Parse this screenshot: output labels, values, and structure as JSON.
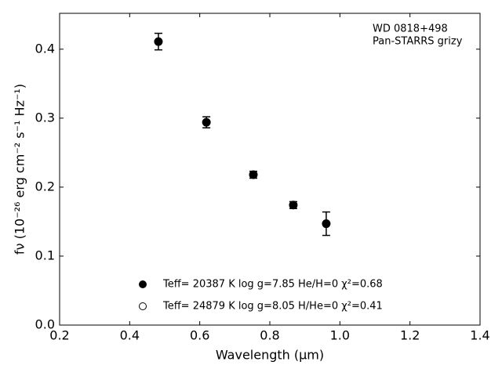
{
  "chart_data": {
    "type": "scatter",
    "annotations": [
      "WD 0818+498",
      "Pan-STARRS grizy"
    ],
    "xlabel": "Wavelength (μm)",
    "ylabel": "fν (10⁻²⁶ erg cm⁻² s⁻¹ Hz⁻¹)",
    "x": [
      0.482,
      0.619,
      0.753,
      0.867,
      0.961
    ],
    "series": [
      {
        "name": "Teff= 20387 K  log g=7.85  He/H=0  χ²=0.68",
        "color": "#000000",
        "marker": "filled",
        "values": [
          0.411,
          0.294,
          0.218,
          0.174,
          0.147
        ],
        "errors": [
          0.012,
          0.008,
          0.005,
          0.005,
          0.017
        ]
      },
      {
        "name": "Teff= 24879 K  log g=8.05  H/He=0  χ²=0.41",
        "color": "#000000",
        "marker": "open",
        "values": []
      }
    ],
    "xlim": [
      0.2,
      1.4
    ],
    "xticks": [
      0.2,
      0.4,
      0.6,
      0.8,
      {
        "value": 1.0,
        "label": "1.0"
      },
      1.2,
      1.4
    ],
    "ylim": [
      0,
      0.452
    ],
    "yticks": [
      {
        "value": 0,
        "label": "0.0"
      },
      0.1,
      0.2,
      0.3,
      0.4
    ],
    "grid": false
  }
}
